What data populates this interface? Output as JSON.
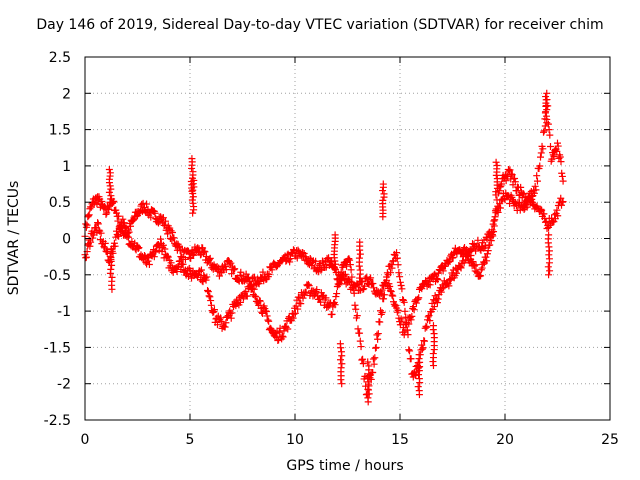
{
  "chart_data": {
    "type": "scatter",
    "title": "Day 146 of 2019, Sidereal Day-to-day VTEC variation (SDTVAR) for receiver chim",
    "xlabel": "GPS time / hours",
    "ylabel": "SDTVAR / TECUs",
    "xlim": [
      0,
      25
    ],
    "ylim": [
      -2.5,
      2.5
    ],
    "xticks": [
      0,
      5,
      10,
      15,
      20,
      25
    ],
    "yticks": [
      -2.5,
      -2,
      -1.5,
      -1,
      -0.5,
      0,
      0.5,
      1,
      1.5,
      2,
      2.5
    ],
    "xtick_labels": [
      "0",
      "5",
      "10",
      "15",
      "20",
      "25"
    ],
    "ytick_labels": [
      "-2.5",
      "-2",
      "-1.5",
      "-1",
      "-0.5",
      "0",
      "0.5",
      "1",
      "1.5",
      "2",
      "2.5"
    ],
    "grid": true,
    "marker": "+",
    "color": "#ff0000",
    "series": [
      {
        "name": "SDTVAR",
        "trace_a": [
          [
            0.0,
            0.1
          ],
          [
            0.2,
            0.35
          ],
          [
            0.4,
            0.5
          ],
          [
            0.6,
            0.55
          ],
          [
            0.8,
            0.45
          ],
          [
            1.0,
            0.35
          ],
          [
            1.2,
            0.5
          ],
          [
            1.4,
            0.45
          ],
          [
            1.6,
            0.25
          ],
          [
            1.8,
            0.1
          ],
          [
            2.0,
            0.05
          ],
          [
            2.2,
            0.2
          ],
          [
            2.5,
            0.35
          ],
          [
            2.8,
            0.45
          ],
          [
            3.1,
            0.35
          ],
          [
            3.4,
            0.3
          ],
          [
            3.7,
            0.25
          ],
          [
            4.0,
            0.1
          ],
          [
            4.3,
            -0.05
          ],
          [
            4.6,
            -0.2
          ],
          [
            5.0,
            -0.25
          ],
          [
            5.3,
            -0.15
          ],
          [
            5.6,
            -0.2
          ],
          [
            6.0,
            -0.35
          ],
          [
            6.4,
            -0.45
          ],
          [
            6.8,
            -0.35
          ],
          [
            7.2,
            -0.5
          ],
          [
            7.6,
            -0.55
          ],
          [
            8.0,
            -0.6
          ],
          [
            8.4,
            -0.55
          ],
          [
            8.8,
            -0.45
          ],
          [
            9.2,
            -0.35
          ],
          [
            9.6,
            -0.3
          ],
          [
            10.0,
            -0.2
          ],
          [
            10.4,
            -0.25
          ],
          [
            10.8,
            -0.35
          ],
          [
            11.2,
            -0.4
          ],
          [
            11.6,
            -0.3
          ],
          [
            12.0,
            -0.5
          ],
          [
            12.4,
            -0.55
          ],
          [
            12.8,
            -0.7
          ],
          [
            13.2,
            -0.65
          ],
          [
            13.6,
            -0.55
          ],
          [
            14.0,
            -0.8
          ],
          [
            14.4,
            -0.6
          ],
          [
            14.8,
            -0.9
          ],
          [
            15.2,
            -1.3
          ],
          [
            15.6,
            -1.0
          ],
          [
            16.0,
            -0.7
          ],
          [
            16.4,
            -0.6
          ],
          [
            16.8,
            -0.5
          ],
          [
            17.2,
            -0.35
          ],
          [
            17.6,
            -0.2
          ],
          [
            18.0,
            -0.15
          ],
          [
            18.4,
            -0.3
          ],
          [
            18.8,
            -0.5
          ],
          [
            19.2,
            -0.2
          ],
          [
            19.6,
            0.35
          ],
          [
            20.0,
            0.6
          ],
          [
            20.4,
            0.5
          ],
          [
            20.8,
            0.4
          ],
          [
            21.2,
            0.55
          ],
          [
            21.6,
            0.4
          ],
          [
            22.0,
            0.2
          ],
          [
            22.4,
            0.3
          ],
          [
            22.8,
            0.6
          ]
        ],
        "trace_b": [
          [
            0.0,
            -0.3
          ],
          [
            0.3,
            0.05
          ],
          [
            0.6,
            0.15
          ],
          [
            0.9,
            -0.1
          ],
          [
            1.2,
            -0.3
          ],
          [
            1.5,
            0.05
          ],
          [
            1.8,
            0.2
          ],
          [
            2.1,
            0.0
          ],
          [
            2.4,
            -0.1
          ],
          [
            2.7,
            -0.25
          ],
          [
            3.0,
            -0.35
          ],
          [
            3.3,
            -0.2
          ],
          [
            3.6,
            -0.05
          ],
          [
            3.9,
            -0.3
          ],
          [
            4.2,
            -0.4
          ],
          [
            4.6,
            -0.35
          ],
          [
            5.0,
            -0.5
          ],
          [
            5.4,
            -0.45
          ],
          [
            5.8,
            -0.6
          ],
          [
            6.2,
            -1.1
          ],
          [
            6.6,
            -1.2
          ],
          [
            7.0,
            -1.0
          ],
          [
            7.4,
            -0.8
          ],
          [
            7.8,
            -0.7
          ],
          [
            8.2,
            -0.8
          ],
          [
            8.6,
            -1.05
          ],
          [
            9.0,
            -1.35
          ],
          [
            9.4,
            -1.3
          ],
          [
            9.8,
            -1.1
          ],
          [
            10.2,
            -0.85
          ],
          [
            10.6,
            -0.7
          ],
          [
            11.0,
            -0.75
          ],
          [
            11.4,
            -0.85
          ],
          [
            11.8,
            -1.0
          ],
          [
            12.2,
            -0.45
          ],
          [
            12.6,
            -0.3
          ],
          [
            13.0,
            -1.2
          ],
          [
            13.4,
            -2.1
          ],
          [
            13.7,
            -1.8
          ],
          [
            14.0,
            -1.2
          ],
          [
            14.4,
            -0.5
          ],
          [
            14.8,
            -0.2
          ],
          [
            15.2,
            -0.95
          ],
          [
            15.6,
            -1.9
          ],
          [
            15.9,
            -1.7
          ],
          [
            16.2,
            -1.3
          ],
          [
            16.6,
            -0.9
          ],
          [
            17.0,
            -0.7
          ],
          [
            17.4,
            -0.55
          ],
          [
            17.8,
            -0.4
          ],
          [
            18.2,
            -0.2
          ],
          [
            18.6,
            -0.1
          ],
          [
            19.0,
            -0.1
          ],
          [
            19.4,
            0.1
          ],
          [
            19.8,
            0.75
          ],
          [
            20.2,
            0.9
          ],
          [
            20.6,
            0.7
          ],
          [
            21.0,
            0.55
          ],
          [
            21.4,
            0.6
          ],
          [
            21.8,
            1.3
          ],
          [
            22.0,
            1.9
          ],
          [
            22.2,
            1.1
          ],
          [
            22.5,
            1.25
          ],
          [
            22.8,
            0.8
          ]
        ],
        "spikes": [
          [
            1.2,
            0.95
          ],
          [
            1.25,
            -0.7
          ],
          [
            5.1,
            1.1
          ],
          [
            5.15,
            0.8
          ],
          [
            13.5,
            -2.25
          ],
          [
            12.2,
            -2.0
          ],
          [
            14.2,
            0.75
          ],
          [
            15.9,
            -2.15
          ],
          [
            16.6,
            -1.75
          ],
          [
            19.6,
            1.05
          ],
          [
            21.95,
            2.0
          ],
          [
            22.1,
            -0.5
          ],
          [
            11.9,
            0.05
          ],
          [
            13.1,
            -0.6
          ]
        ]
      }
    ]
  }
}
